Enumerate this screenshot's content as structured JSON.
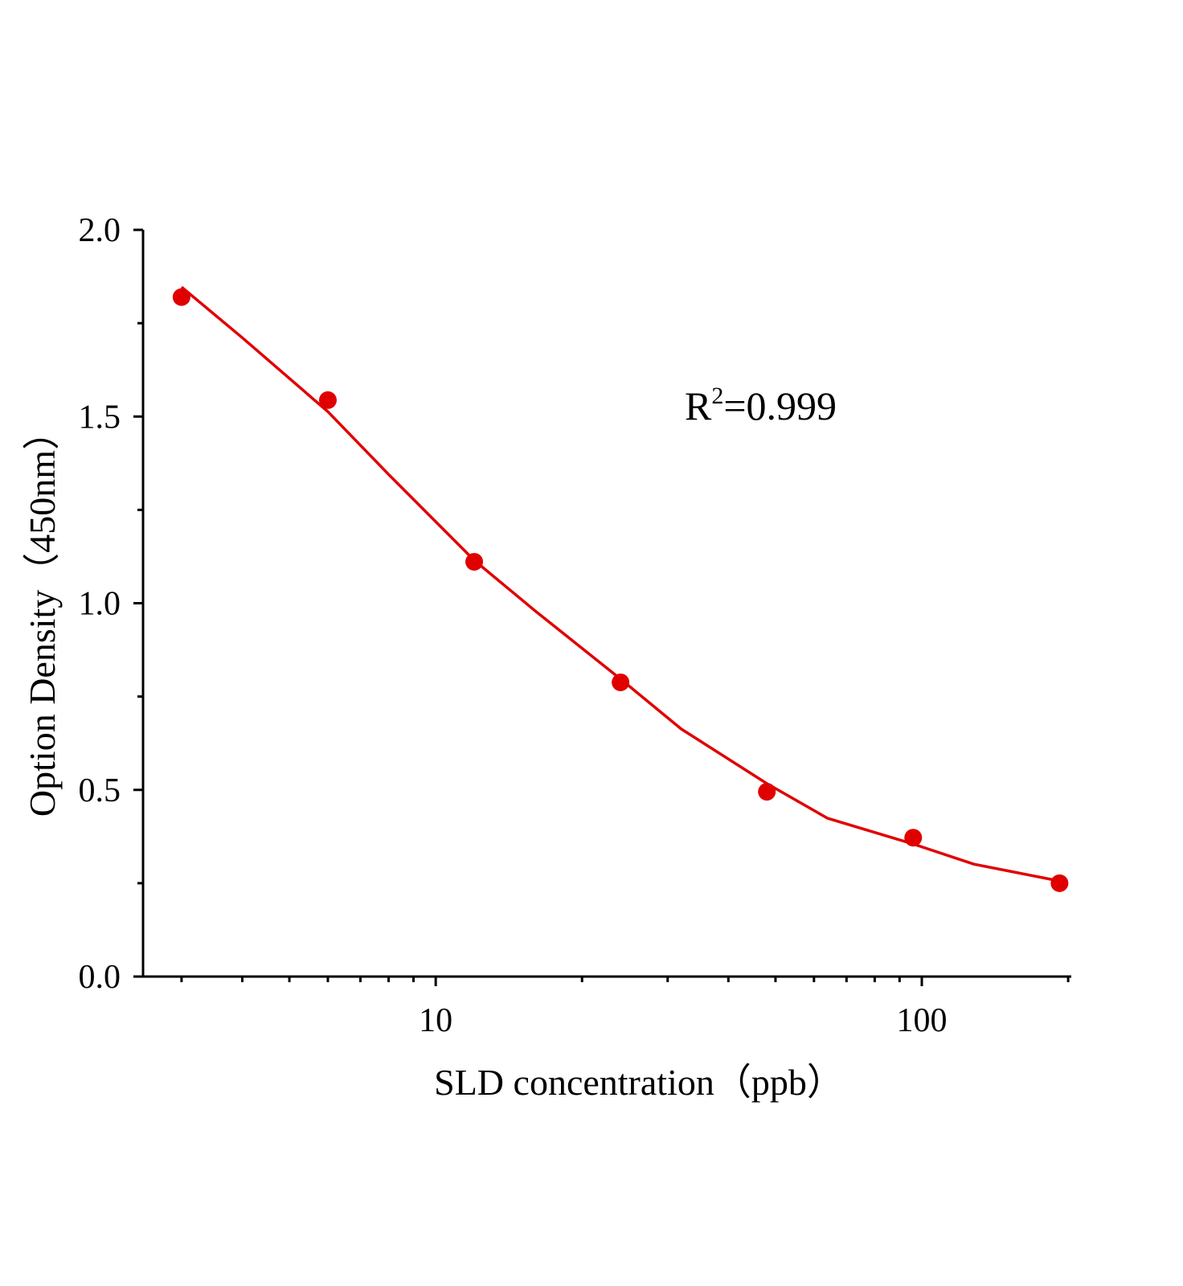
{
  "chart_data": {
    "type": "scatter",
    "x_label": "SLD concentration（ppb）",
    "y_label": "Option Density（450nm）",
    "annotation": {
      "base": "R",
      "sup": "2",
      "rest": "=0.999"
    },
    "x_log": true,
    "xlim": [
      2.5,
      203
    ],
    "ylim": [
      0,
      2.0
    ],
    "xticks": [
      10,
      100
    ],
    "xminor": [
      3,
      4,
      5,
      6,
      7,
      8,
      9,
      20,
      30,
      40,
      50,
      60,
      70,
      80,
      90,
      200
    ],
    "yticks": [
      {
        "value": 0,
        "label": "0.0"
      },
      0.5,
      {
        "value": 1,
        "label": "1.0"
      },
      1.5,
      {
        "value": 2,
        "label": "2.0"
      }
    ],
    "yminor": [
      0.25,
      0.75,
      1.25,
      1.75
    ],
    "color": "#e00000",
    "x": [
      3,
      6,
      12,
      24,
      48,
      96,
      192
    ],
    "values": [
      1.82,
      1.544,
      1.111,
      0.788,
      0.495,
      0.372,
      0.25
    ],
    "curve": {
      "x": [
        3,
        4,
        6,
        8,
        12,
        16,
        24,
        32,
        48,
        64,
        96,
        128,
        192
      ],
      "values": [
        1.847,
        1.711,
        1.513,
        1.345,
        1.115,
        0.98,
        0.797,
        0.663,
        0.517,
        0.424,
        0.355,
        0.301,
        0.256
      ]
    }
  }
}
